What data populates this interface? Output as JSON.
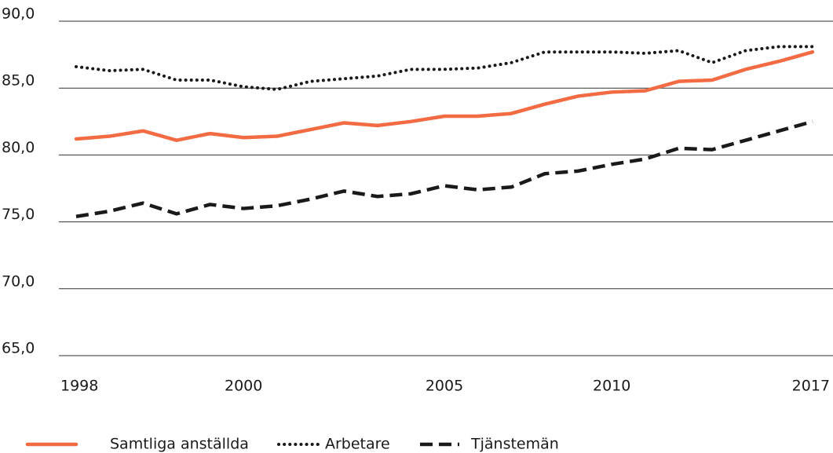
{
  "chart_data": {
    "type": "line",
    "categories": [
      "1998",
      null,
      null,
      null,
      null,
      "2000",
      null,
      null,
      null,
      null,
      null,
      "2005",
      null,
      null,
      null,
      null,
      "2010",
      null,
      null,
      null,
      null,
      null,
      "2017"
    ],
    "series": [
      {
        "name": "Samtliga anställda",
        "color": "#f26b43",
        "style": "solid",
        "values": [
          81.2,
          81.4,
          81.8,
          81.1,
          81.6,
          81.3,
          81.4,
          81.9,
          82.4,
          82.2,
          82.5,
          82.9,
          82.9,
          83.1,
          83.8,
          84.4,
          84.7,
          84.8,
          85.5,
          85.6,
          86.4,
          87.0,
          87.7
        ]
      },
      {
        "name": "Arbetare",
        "color": "#1a1a1a",
        "style": "dotted",
        "values": [
          86.6,
          86.3,
          86.4,
          85.6,
          85.6,
          85.1,
          84.9,
          85.5,
          85.7,
          85.9,
          86.4,
          86.4,
          86.5,
          86.9,
          87.7,
          87.7,
          87.7,
          87.6,
          87.8,
          86.9,
          87.8,
          88.1,
          88.1
        ]
      },
      {
        "name": "Tjänstemän",
        "color": "#1a1a1a",
        "style": "dashed",
        "values": [
          75.4,
          75.8,
          76.4,
          75.6,
          76.3,
          76.0,
          76.2,
          76.7,
          77.3,
          76.9,
          77.1,
          77.7,
          77.4,
          77.6,
          78.6,
          78.8,
          79.3,
          79.7,
          80.5,
          80.4,
          81.1,
          81.8,
          82.5
        ]
      }
    ],
    "ylim": [
      65,
      90
    ],
    "yticks": [
      {
        "value": 65,
        "label": "65,0"
      },
      {
        "value": 70,
        "label": "70,0"
      },
      {
        "value": 75,
        "label": "75,0"
      },
      {
        "value": 80,
        "label": "80,0"
      },
      {
        "value": 85,
        "label": "85,0"
      },
      {
        "value": 90,
        "label": "90,0"
      }
    ],
    "grid": true,
    "legend": "bottom"
  }
}
